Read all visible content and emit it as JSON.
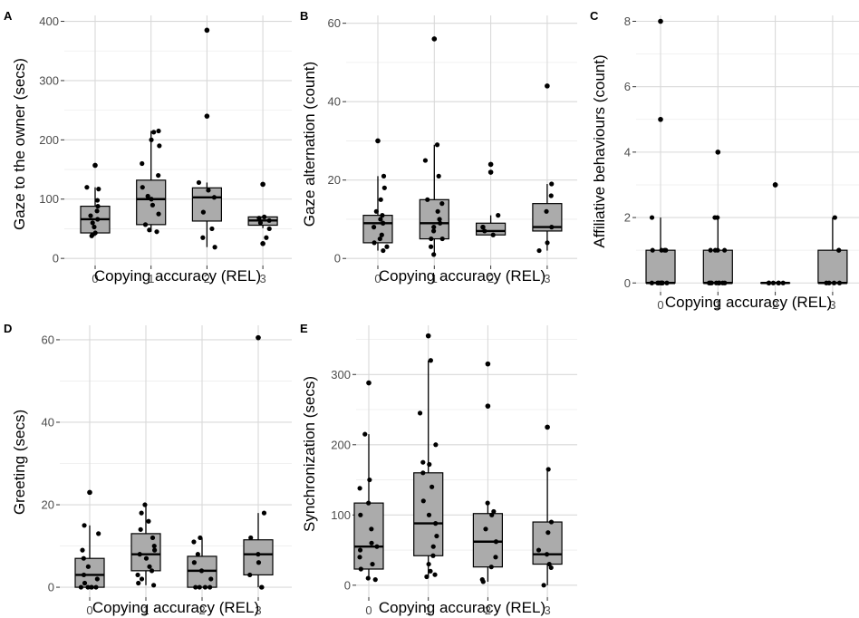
{
  "chart_data": [
    {
      "panel": "A",
      "type": "box",
      "xlabel": "Copying accuracy (REL)",
      "ylabel": "Gaze to the owner (secs)",
      "categories": [
        "0",
        "1",
        "2",
        "3"
      ],
      "yticks": [
        0,
        100,
        200,
        300,
        400
      ],
      "ylim": [
        -12,
        410
      ],
      "boxes": [
        {
          "q1": 43,
          "median": 66,
          "q3": 88,
          "wlo": 38,
          "whi": 120
        },
        {
          "q1": 57,
          "median": 100,
          "q3": 132,
          "wlo": 45,
          "whi": 215
        },
        {
          "q1": 63,
          "median": 103,
          "q3": 119,
          "wlo": 19,
          "whi": 128
        },
        {
          "q1": 56,
          "median": 64,
          "q3": 70,
          "wlo": 51,
          "whi": 70
        }
      ],
      "points": [
        [
          0,
          157
        ],
        [
          0,
          120
        ],
        [
          0,
          117
        ],
        [
          0,
          98
        ],
        [
          0,
          88
        ],
        [
          0,
          80
        ],
        [
          0,
          72
        ],
        [
          0,
          66
        ],
        [
          0,
          60
        ],
        [
          0,
          53
        ],
        [
          0,
          43
        ],
        [
          0,
          40
        ],
        [
          0,
          38
        ],
        [
          1,
          215
        ],
        [
          1,
          213
        ],
        [
          1,
          200
        ],
        [
          1,
          190
        ],
        [
          1,
          160
        ],
        [
          1,
          140
        ],
        [
          1,
          120
        ],
        [
          1,
          105
        ],
        [
          1,
          100
        ],
        [
          1,
          90
        ],
        [
          1,
          75
        ],
        [
          1,
          57
        ],
        [
          1,
          48
        ],
        [
          1,
          45
        ],
        [
          2,
          385
        ],
        [
          2,
          240
        ],
        [
          2,
          128
        ],
        [
          2,
          115
        ],
        [
          2,
          103
        ],
        [
          2,
          78
        ],
        [
          2,
          50
        ],
        [
          2,
          35
        ],
        [
          2,
          19
        ],
        [
          3,
          125
        ],
        [
          3,
          70
        ],
        [
          3,
          68
        ],
        [
          3,
          64
        ],
        [
          3,
          60
        ],
        [
          3,
          50
        ],
        [
          3,
          35
        ],
        [
          3,
          25
        ]
      ],
      "outliers": [
        [
          0,
          157
        ],
        [
          2,
          385
        ],
        [
          2,
          240
        ],
        [
          3,
          125
        ],
        [
          3,
          25
        ]
      ]
    },
    {
      "panel": "B",
      "type": "box",
      "xlabel": "Copying accuracy (REL)",
      "ylabel": "Gaze alternation (count)",
      "categories": [
        "0",
        "1",
        "2",
        "3"
      ],
      "yticks": [
        0,
        20,
        40,
        60
      ],
      "ylim": [
        -1.8,
        62
      ],
      "boxes": [
        {
          "q1": 4,
          "median": 9,
          "q3": 11,
          "wlo": 2,
          "whi": 21
        },
        {
          "q1": 5,
          "median": 9,
          "q3": 15,
          "wlo": 1,
          "whi": 29
        },
        {
          "q1": 6,
          "median": 7,
          "q3": 9,
          "wlo": 6,
          "whi": 11
        },
        {
          "q1": 7,
          "median": 8,
          "q3": 14,
          "wlo": 2,
          "whi": 19
        }
      ],
      "points": [
        [
          0,
          30
        ],
        [
          0,
          21
        ],
        [
          0,
          18
        ],
        [
          0,
          15
        ],
        [
          0,
          12
        ],
        [
          0,
          11
        ],
        [
          0,
          10
        ],
        [
          0,
          9
        ],
        [
          0,
          9
        ],
        [
          0,
          8
        ],
        [
          0,
          6
        ],
        [
          0,
          5
        ],
        [
          0,
          4
        ],
        [
          0,
          3
        ],
        [
          0,
          2
        ],
        [
          1,
          56
        ],
        [
          1,
          29
        ],
        [
          1,
          25
        ],
        [
          1,
          21
        ],
        [
          1,
          15
        ],
        [
          1,
          14
        ],
        [
          1,
          12
        ],
        [
          1,
          10
        ],
        [
          1,
          9
        ],
        [
          1,
          8
        ],
        [
          1,
          7
        ],
        [
          1,
          5
        ],
        [
          1,
          5
        ],
        [
          1,
          3
        ],
        [
          1,
          1
        ],
        [
          2,
          24
        ],
        [
          2,
          22
        ],
        [
          2,
          11
        ],
        [
          2,
          8
        ],
        [
          2,
          8
        ],
        [
          2,
          7
        ],
        [
          2,
          6
        ],
        [
          3,
          44
        ],
        [
          3,
          19
        ],
        [
          3,
          16
        ],
        [
          3,
          12
        ],
        [
          3,
          8
        ],
        [
          3,
          4
        ],
        [
          3,
          2
        ]
      ],
      "outliers": [
        [
          0,
          30
        ],
        [
          1,
          56
        ],
        [
          2,
          24
        ],
        [
          2,
          22
        ],
        [
          3,
          44
        ]
      ]
    },
    {
      "panel": "C",
      "type": "box",
      "xlabel": "Copying accuracy (REL)",
      "ylabel": "Affiliative behaviours (count)",
      "categories": [
        "0",
        "1",
        "2",
        "3"
      ],
      "yticks": [
        0,
        2,
        4,
        6,
        8
      ],
      "ylim": [
        -0.27,
        8.18
      ],
      "boxes": [
        {
          "q1": 0,
          "median": 0,
          "q3": 1,
          "wlo": 0,
          "whi": 2
        },
        {
          "q1": 0,
          "median": 0,
          "q3": 1,
          "wlo": 0,
          "whi": 2
        },
        {
          "q1": 0,
          "median": 0,
          "q3": 0,
          "wlo": 0,
          "whi": 0
        },
        {
          "q1": 0,
          "median": 0,
          "q3": 1,
          "wlo": 0,
          "whi": 2
        }
      ],
      "points": [
        [
          0,
          8
        ],
        [
          0,
          5
        ],
        [
          0,
          2
        ],
        [
          0,
          1
        ],
        [
          0,
          1
        ],
        [
          0,
          1
        ],
        [
          0,
          1
        ],
        [
          0,
          0
        ],
        [
          0,
          0
        ],
        [
          0,
          0
        ],
        [
          0,
          0
        ],
        [
          0,
          0
        ],
        [
          0,
          0
        ],
        [
          0,
          0
        ],
        [
          0,
          0
        ],
        [
          1,
          4
        ],
        [
          1,
          2
        ],
        [
          1,
          2
        ],
        [
          1,
          1
        ],
        [
          1,
          1
        ],
        [
          1,
          1
        ],
        [
          1,
          1
        ],
        [
          1,
          0
        ],
        [
          1,
          0
        ],
        [
          1,
          0
        ],
        [
          1,
          0
        ],
        [
          1,
          0
        ],
        [
          1,
          0
        ],
        [
          1,
          0
        ],
        [
          1,
          0
        ],
        [
          2,
          3
        ],
        [
          2,
          3
        ],
        [
          2,
          0
        ],
        [
          2,
          0
        ],
        [
          2,
          0
        ],
        [
          2,
          0
        ],
        [
          2,
          0
        ],
        [
          2,
          0
        ],
        [
          3,
          2
        ],
        [
          3,
          1
        ],
        [
          3,
          1
        ],
        [
          3,
          0
        ],
        [
          3,
          0
        ],
        [
          3,
          0
        ],
        [
          3,
          0
        ]
      ],
      "outliers": [
        [
          0,
          8
        ],
        [
          0,
          5
        ],
        [
          1,
          4
        ],
        [
          2,
          3
        ],
        [
          2,
          3
        ]
      ]
    },
    {
      "panel": "D",
      "type": "box",
      "xlabel": "Copying accuracy (REL)",
      "ylabel": "Greeting (secs)",
      "categories": [
        "0",
        "1",
        "2",
        "3"
      ],
      "yticks": [
        0,
        20,
        40,
        60
      ],
      "ylim": [
        -2.4,
        63.5
      ],
      "boxes": [
        {
          "q1": 0,
          "median": 3,
          "q3": 7,
          "wlo": 0,
          "whi": 15
        },
        {
          "q1": 4,
          "median": 8,
          "q3": 13,
          "wlo": 0.5,
          "whi": 20
        },
        {
          "q1": 0,
          "median": 4,
          "q3": 7.5,
          "wlo": 0,
          "whi": 12
        },
        {
          "q1": 3,
          "median": 8,
          "q3": 11.5,
          "wlo": 0,
          "whi": 18
        }
      ],
      "points": [
        [
          0,
          23
        ],
        [
          0,
          15
        ],
        [
          0,
          13
        ],
        [
          0,
          9
        ],
        [
          0,
          7
        ],
        [
          0,
          5
        ],
        [
          0,
          3
        ],
        [
          0,
          2
        ],
        [
          0,
          1
        ],
        [
          0,
          0
        ],
        [
          0,
          0
        ],
        [
          0,
          0
        ],
        [
          0,
          0
        ],
        [
          0,
          0
        ],
        [
          1,
          20
        ],
        [
          1,
          18
        ],
        [
          1,
          16
        ],
        [
          1,
          14
        ],
        [
          1,
          12
        ],
        [
          1,
          10
        ],
        [
          1,
          9
        ],
        [
          1,
          8
        ],
        [
          1,
          7
        ],
        [
          1,
          5
        ],
        [
          1,
          4
        ],
        [
          1,
          3
        ],
        [
          1,
          2
        ],
        [
          1,
          1
        ],
        [
          1,
          0.5
        ],
        [
          2,
          12
        ],
        [
          2,
          11
        ],
        [
          2,
          8
        ],
        [
          2,
          6
        ],
        [
          2,
          4
        ],
        [
          2,
          2
        ],
        [
          2,
          0
        ],
        [
          2,
          0
        ],
        [
          2,
          0
        ],
        [
          2,
          0
        ],
        [
          3,
          60.5
        ],
        [
          3,
          18
        ],
        [
          3,
          12
        ],
        [
          3,
          8
        ],
        [
          3,
          6
        ],
        [
          3,
          3
        ],
        [
          3,
          0
        ],
        [
          3,
          0
        ]
      ],
      "outliers": [
        [
          0,
          23
        ],
        [
          3,
          60.5
        ]
      ]
    },
    {
      "panel": "E",
      "type": "box",
      "xlabel": "Copying accuracy (REL)",
      "ylabel": "Synchronization (secs)",
      "categories": [
        "0",
        "1",
        "2",
        "3"
      ],
      "yticks": [
        0,
        100,
        200,
        300
      ],
      "ylim": [
        -17,
        370
      ],
      "boxes": [
        {
          "q1": 23,
          "median": 55,
          "q3": 117,
          "wlo": 8,
          "whi": 215
        },
        {
          "q1": 42,
          "median": 88,
          "q3": 160,
          "wlo": 12,
          "whi": 320
        },
        {
          "q1": 26,
          "median": 62,
          "q3": 102,
          "wlo": 5,
          "whi": 117
        },
        {
          "q1": 30,
          "median": 44,
          "q3": 90,
          "wlo": 0,
          "whi": 165
        }
      ],
      "points": [
        [
          0,
          288
        ],
        [
          0,
          215
        ],
        [
          0,
          150
        ],
        [
          0,
          138
        ],
        [
          0,
          117
        ],
        [
          0,
          100
        ],
        [
          0,
          80
        ],
        [
          0,
          60
        ],
        [
          0,
          55
        ],
        [
          0,
          50
        ],
        [
          0,
          40
        ],
        [
          0,
          30
        ],
        [
          0,
          23
        ],
        [
          0,
          10
        ],
        [
          0,
          8
        ],
        [
          1,
          355
        ],
        [
          1,
          320
        ],
        [
          1,
          245
        ],
        [
          1,
          200
        ],
        [
          1,
          175
        ],
        [
          1,
          172
        ],
        [
          1,
          160
        ],
        [
          1,
          140
        ],
        [
          1,
          120
        ],
        [
          1,
          100
        ],
        [
          1,
          88
        ],
        [
          1,
          70
        ],
        [
          1,
          55
        ],
        [
          1,
          42
        ],
        [
          1,
          30
        ],
        [
          1,
          20
        ],
        [
          1,
          15
        ],
        [
          1,
          12
        ],
        [
          2,
          315
        ],
        [
          2,
          255
        ],
        [
          2,
          117
        ],
        [
          2,
          105
        ],
        [
          2,
          100
        ],
        [
          2,
          80
        ],
        [
          2,
          62
        ],
        [
          2,
          40
        ],
        [
          2,
          26
        ],
        [
          2,
          8
        ],
        [
          2,
          5
        ],
        [
          3,
          225
        ],
        [
          3,
          165
        ],
        [
          3,
          90
        ],
        [
          3,
          75
        ],
        [
          3,
          50
        ],
        [
          3,
          44
        ],
        [
          3,
          30
        ],
        [
          3,
          25
        ],
        [
          3,
          0
        ]
      ],
      "outliers": [
        [
          0,
          288
        ],
        [
          1,
          355
        ],
        [
          2,
          315
        ],
        [
          2,
          255
        ],
        [
          3,
          225
        ]
      ]
    }
  ]
}
